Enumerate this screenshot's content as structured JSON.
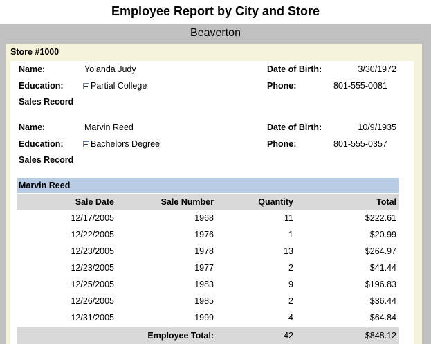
{
  "title": "Employee Report by City and Store",
  "city": "Beaverton",
  "store": "Store #1000",
  "labels": {
    "name": "Name:",
    "education": "Education:",
    "date_of_birth": "Date of Birth:",
    "phone": "Phone:",
    "sales_record": "Sales Record"
  },
  "employees": [
    {
      "name": "Yolanda Judy",
      "education": "Partial College",
      "date_of_birth": "3/30/1972",
      "phone": "801-555-0081",
      "expanded": false
    },
    {
      "name": "Marvin Reed",
      "education": "Bachelors Degree",
      "date_of_birth": "10/9/1935",
      "phone": "801-555-0357",
      "expanded": true
    }
  ],
  "sales_table": {
    "title": "Marvin Reed",
    "columns": [
      "Sale Date",
      "Sale Number",
      "Quantity",
      "Total"
    ],
    "rows": [
      [
        "12/17/2005",
        1968,
        11,
        "$222.61"
      ],
      [
        "12/22/2005",
        1976,
        1,
        "$20.99"
      ],
      [
        "12/23/2005",
        1978,
        13,
        "$264.97"
      ],
      [
        "12/23/2005",
        1977,
        2,
        "$41.44"
      ],
      [
        "12/25/2005",
        1983,
        9,
        "$196.83"
      ],
      [
        "12/26/2005",
        1985,
        2,
        "$36.44"
      ],
      [
        "12/31/2005",
        1999,
        4,
        "$64.84"
      ]
    ],
    "total_label": "Employee Total:",
    "total_quantity": 42,
    "total": "$848.12"
  }
}
